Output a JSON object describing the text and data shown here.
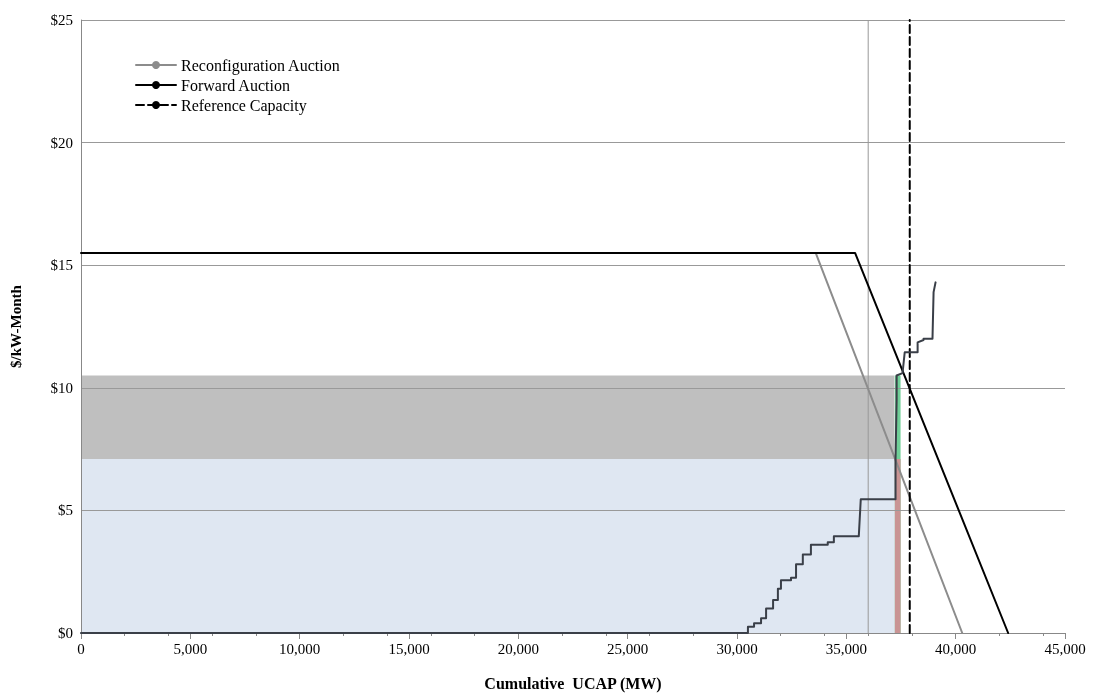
{
  "chart_data": {
    "type": "line",
    "xlabel": "Cumulative  UCAP (MW)",
    "ylabel": "$/kW-Month",
    "xlim": [
      0,
      45000
    ],
    "xticks": [
      {
        "value": 0,
        "label": "0"
      },
      {
        "value": 5000,
        "label": "5,000"
      },
      {
        "value": 10000,
        "label": "10,000"
      },
      {
        "value": 15000,
        "label": "15,000"
      },
      {
        "value": 20000,
        "label": "20,000"
      },
      {
        "value": 25000,
        "label": "25,000"
      },
      {
        "value": 30000,
        "label": "30,000"
      },
      {
        "value": 35000,
        "label": "35,000"
      },
      {
        "value": 40000,
        "label": "40,000"
      },
      {
        "value": 45000,
        "label": "45,000"
      }
    ],
    "ylim": [
      0,
      25
    ],
    "yticks": [
      {
        "value": 0,
        "label": "$0"
      },
      {
        "value": 5,
        "label": "$5"
      },
      {
        "value": 10,
        "label": "$10"
      },
      {
        "value": 15,
        "label": "$15"
      },
      {
        "value": 20,
        "label": "$20"
      },
      {
        "value": 25,
        "label": "$25"
      }
    ],
    "grid": "y",
    "legend": "top left",
    "marker": "none",
    "ref_lines": [
      {
        "axis": "x",
        "value": 36000,
        "color": "#999999"
      }
    ],
    "series": [
      {
        "type": "area",
        "color": "#bfbfbf",
        "x": [
          0,
          37200
        ],
        "values": [
          10.5,
          10.5
        ]
      },
      {
        "type": "area",
        "color": "#dfe7f2",
        "x": [
          0,
          37200
        ],
        "values": [
          7.1,
          7.1
        ]
      },
      {
        "type": "area",
        "color": "#6fcf97",
        "x": [
          37220,
          37480
        ],
        "values": [
          10.5,
          10.5
        ]
      },
      {
        "type": "area",
        "color": "#c99494",
        "x": [
          37220,
          37480
        ],
        "values": [
          7.1,
          7.1
        ]
      },
      {
        "name": "Reconfiguration Auction",
        "color": "#8c8c8c",
        "x": [
          33600,
          40300
        ],
        "values": [
          15.5,
          0
        ]
      },
      {
        "name": "Forward Auction",
        "color": "#000000",
        "x": [
          0,
          35400,
          42400
        ],
        "values": [
          15.5,
          15.5,
          0
        ]
      },
      {
        "name": "Reference Capacity",
        "color": "#000000",
        "line_style": "dashed",
        "x": [
          37900,
          37900
        ],
        "values": [
          0,
          25
        ]
      },
      {
        "color": "#3a3f48",
        "x": [
          0,
          30500,
          30500,
          30780,
          30780,
          31100,
          31100,
          31330,
          31330,
          31650,
          31650,
          31870,
          31870,
          32010,
          32010,
          32470,
          32470,
          32700,
          32700,
          33010,
          33010,
          33380,
          33380,
          34150,
          34150,
          34430,
          34430,
          35570,
          35660,
          37250,
          37250,
          37300,
          37300,
          37570,
          37670,
          38260,
          38260,
          38530,
          38530,
          38940,
          38990,
          39080
        ],
        "values": [
          0,
          0,
          0.25,
          0.25,
          0.4,
          0.4,
          0.6,
          0.6,
          1.0,
          1.0,
          1.35,
          1.35,
          1.8,
          1.8,
          2.15,
          2.15,
          2.25,
          2.25,
          2.8,
          2.8,
          3.2,
          3.2,
          3.6,
          3.6,
          3.7,
          3.7,
          3.95,
          3.95,
          5.45,
          5.45,
          7.1,
          9.5,
          10.5,
          10.6,
          11.45,
          11.45,
          11.85,
          11.95,
          12.0,
          12.0,
          13.9,
          14.3
        ]
      }
    ]
  }
}
